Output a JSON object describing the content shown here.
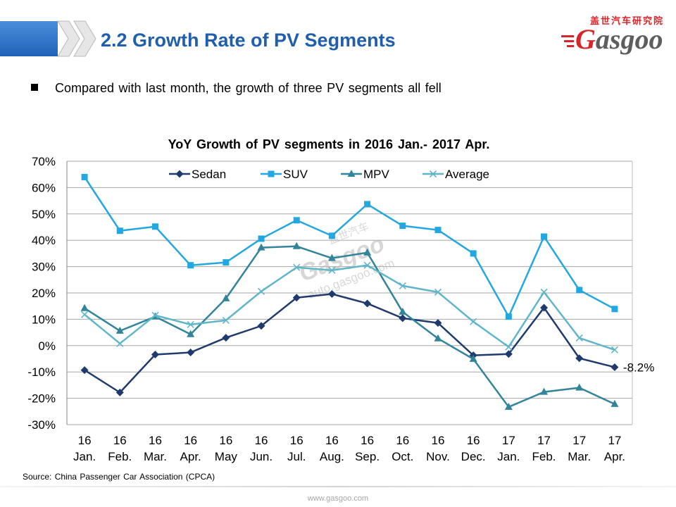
{
  "header": {
    "title": "2.2 Growth Rate of PV Segments",
    "decoration_icon": "double-chevron-right-icon",
    "logo_cn": "盖世汽车研究院",
    "logo_text": "Gasgoo"
  },
  "colors": {
    "title": "#1F5FAE",
    "header_bar": "#1F63B8",
    "logo_red": "#D7252B"
  },
  "bullet": {
    "icon": "square-bullet-icon",
    "text": "Compared with last month, the growth of three PV segments all fell"
  },
  "chart_data": {
    "type": "line",
    "title": "YoY Growth of PV segments in 2016 Jan.- 2017 Apr.",
    "categories": [
      "16 Jan.",
      "16 Feb.",
      "16 Mar.",
      "16 Apr.",
      "16 May",
      "16 Jun.",
      "16 Jul.",
      "16 Aug.",
      "16 Sep.",
      "16 Oct.",
      "16 Nov.",
      "16 Dec.",
      "17 Jan.",
      "17 Feb.",
      "17 Mar.",
      "17 Apr."
    ],
    "series": [
      {
        "name": "Sedan",
        "color": "#1F3B6E",
        "marker": "diamond",
        "values": [
          -9.3,
          -17.8,
          -3.4,
          -2.6,
          3.0,
          7.5,
          18.2,
          19.6,
          16.0,
          10.4,
          8.6,
          -3.7,
          -3.2,
          14.4,
          -4.8,
          -8.2
        ]
      },
      {
        "name": "SUV",
        "color": "#22A7E0",
        "marker": "square",
        "values": [
          64.0,
          43.6,
          45.2,
          30.5,
          31.6,
          40.6,
          47.6,
          41.7,
          53.7,
          45.5,
          43.9,
          35.0,
          11.0,
          41.4,
          21.1,
          13.9
        ]
      },
      {
        "name": "MPV",
        "color": "#31849A",
        "marker": "triangle",
        "values": [
          14.2,
          5.6,
          11.0,
          4.3,
          17.9,
          37.2,
          37.7,
          33.2,
          35.3,
          12.8,
          2.7,
          -5.1,
          -23.3,
          -17.6,
          -16.0,
          -22.2
        ]
      },
      {
        "name": "Average",
        "color": "#5FB6C8",
        "marker": "x",
        "values": [
          11.8,
          0.8,
          11.5,
          8.0,
          9.6,
          20.6,
          29.7,
          28.6,
          30.5,
          22.7,
          20.3,
          9.1,
          -0.5,
          20.3,
          2.9,
          -1.6
        ]
      }
    ],
    "ylim": [
      -30,
      70
    ],
    "yticks": [
      70,
      60,
      50,
      40,
      30,
      20,
      10,
      0,
      -10,
      -20,
      -30
    ],
    "ytick_labels": [
      "70%",
      "60%",
      "50%",
      "40%",
      "30%",
      "20%",
      "10%",
      "0%",
      "-10%",
      "-20%",
      "-30%"
    ],
    "grid": true,
    "legend": "top",
    "data_labels": [
      {
        "series_index": 0,
        "point_index": 15,
        "label": "-8.2%"
      }
    ]
  },
  "watermark": {
    "cn": "盖世汽车",
    "logo": "Gasgoo",
    "url": "auto.gasgoo.com"
  },
  "source": "Source: China Passenger Car Association (CPCA)",
  "footer": {
    "url": "www.gasgoo.com"
  }
}
